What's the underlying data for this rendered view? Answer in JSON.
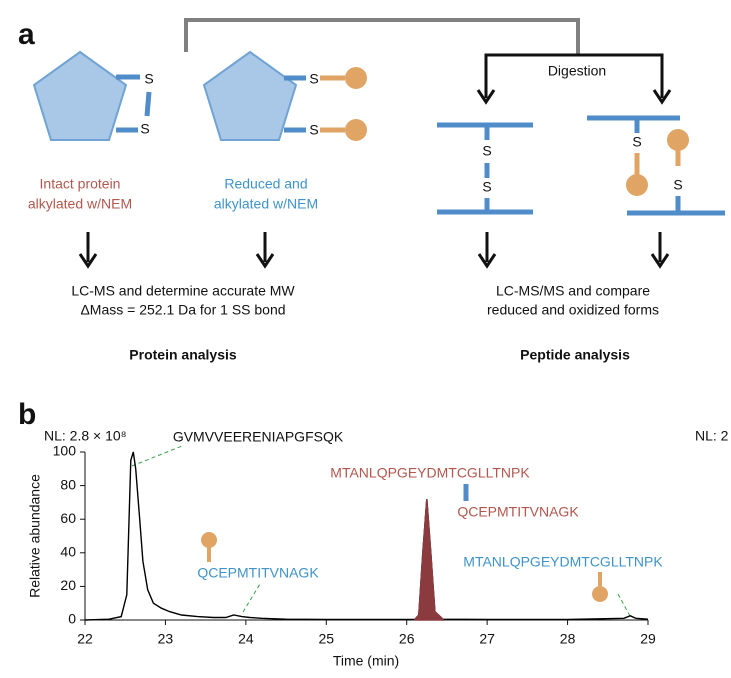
{
  "panel_a": {
    "label": "a",
    "intact_label": [
      "Intact protein",
      "alkylated w/NEM"
    ],
    "reduced_label": [
      "Reduced and",
      "alkylated w/NEM"
    ],
    "sulfur": "S",
    "digestion": "Digestion",
    "protein_method": [
      "LC-MS and determine accurate MW",
      "ΔMass = 252.1 Da for 1 SS bond"
    ],
    "peptide_method": [
      "LC-MS/MS and compare",
      "reduced and oxidized forms"
    ],
    "protein_heading": "Protein analysis",
    "peptide_heading": "Peptide analysis"
  },
  "chart_data": {
    "type": "line",
    "panel_label": "b",
    "normalization_label": "NL: 2.8 × 10⁸",
    "normalization_label_right": "NL: 2",
    "xlabel": "Time (min)",
    "ylabel": "Relative abundance",
    "xlim": [
      22,
      29
    ],
    "xticks": [
      22,
      23,
      24,
      25,
      26,
      27,
      28,
      29
    ],
    "ylim": [
      0,
      100
    ],
    "yticks": [
      0,
      20,
      40,
      60,
      80,
      100
    ],
    "annotations": {
      "peak1": "GVMVVEERENIAPGFSQK",
      "oxidized_top": "MTANLQPGEYDMTCGLLTNPK",
      "oxidized_bottom": "QCEPMTITVNAGK",
      "reduced_left": "QCEPMTITVNAGK",
      "reduced_right": "MTANLQPGEYDMTCGLLTNPK"
    },
    "series": [
      {
        "color": "#000000",
        "x": [
          22.0,
          22.3,
          22.45,
          22.52,
          22.57,
          22.6,
          22.63,
          22.68,
          22.72,
          22.78,
          22.85,
          22.95,
          23.05,
          23.2,
          23.4,
          23.6,
          23.75,
          23.85,
          23.95,
          24.05,
          24.2,
          24.5,
          25.0,
          26.1,
          26.15,
          26.2,
          26.25,
          26.3,
          26.35,
          26.45,
          27.0,
          28.0,
          28.7,
          28.78,
          28.85,
          29.0
        ],
        "values": [
          0,
          0.5,
          2,
          15,
          95,
          100,
          90,
          60,
          35,
          18,
          10,
          7,
          5,
          3,
          2,
          1.5,
          1.5,
          3,
          2,
          1.5,
          1,
          0.5,
          0.3,
          0.3,
          3,
          40,
          72,
          40,
          5,
          0.5,
          0.3,
          0.3,
          1,
          2.5,
          1,
          0.5
        ]
      },
      {
        "color": "#8b3a3e",
        "fill": true,
        "x": [
          26.1,
          26.15,
          26.2,
          26.25,
          26.3,
          26.35,
          26.45
        ],
        "values": [
          0.3,
          3,
          40,
          72,
          40,
          5,
          0.5
        ]
      }
    ]
  }
}
